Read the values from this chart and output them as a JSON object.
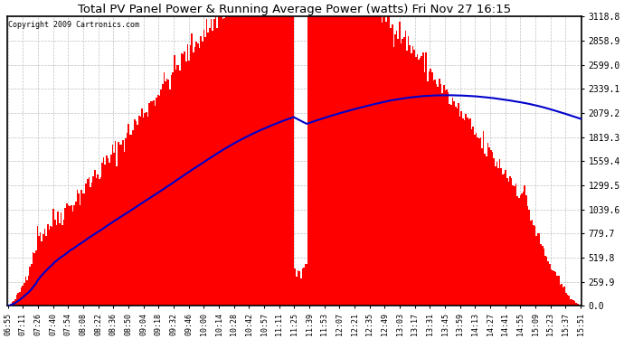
{
  "title": "Total PV Panel Power & Running Average Power (watts) Fri Nov 27 16:15",
  "copyright": "Copyright 2009 Cartronics.com",
  "ytick_labels": [
    "0.0",
    "259.9",
    "519.8",
    "779.7",
    "1039.6",
    "1299.5",
    "1559.4",
    "1819.3",
    "2079.2",
    "2339.1",
    "2599.0",
    "2858.9",
    "3118.8"
  ],
  "ytick_values": [
    0.0,
    259.9,
    519.8,
    779.7,
    1039.6,
    1299.5,
    1559.4,
    1819.3,
    2079.2,
    2339.1,
    2599.0,
    2858.9,
    3118.8
  ],
  "ymax": 3118.8,
  "bar_color": "#FF0000",
  "line_color": "#0000CC",
  "bg_color": "#FFFFFF",
  "title_color": "#000000",
  "copyright_color": "#000000",
  "grid_color": "#C0C0C0",
  "border_color": "#000000",
  "xtick_labels": [
    "06:55",
    "07:11",
    "07:26",
    "07:40",
    "07:54",
    "08:08",
    "08:22",
    "08:36",
    "08:50",
    "09:04",
    "09:18",
    "09:32",
    "09:46",
    "10:00",
    "10:14",
    "10:28",
    "10:42",
    "10:57",
    "11:11",
    "11:25",
    "11:39",
    "11:53",
    "12:07",
    "12:21",
    "12:35",
    "12:49",
    "13:03",
    "13:17",
    "13:31",
    "13:45",
    "13:59",
    "14:13",
    "14:27",
    "14:41",
    "14:55",
    "15:09",
    "15:23",
    "15:37",
    "15:51"
  ],
  "n_bars": 390,
  "peak_watts": 3118.8,
  "seed": 42
}
